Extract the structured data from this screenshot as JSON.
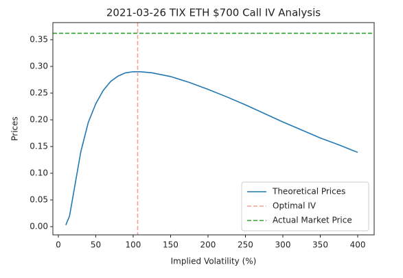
{
  "chart_data": {
    "type": "line",
    "title": "2021-03-26 TIX ETH $700 Call IV Analysis",
    "x_label": "Implied Volatility (%)",
    "y_label": "Prices",
    "x": [
      10,
      15,
      20,
      25,
      30,
      40,
      50,
      60,
      70,
      80,
      90,
      100,
      110,
      125,
      150,
      175,
      200,
      225,
      250,
      275,
      300,
      325,
      350,
      375,
      400
    ],
    "series": [
      {
        "name": "Theoretical Prices",
        "color": "#1f77b4",
        "values": [
          0.003,
          0.02,
          0.06,
          0.1,
          0.14,
          0.195,
          0.23,
          0.255,
          0.272,
          0.282,
          0.288,
          0.29,
          0.29,
          0.288,
          0.281,
          0.27,
          0.257,
          0.243,
          0.228,
          0.212,
          0.196,
          0.181,
          0.166,
          0.153,
          0.139
        ]
      }
    ],
    "reference_lines": [
      {
        "name": "Optimal IV",
        "color": "#f4a09a",
        "x": 106
      },
      {
        "name": "Actual Market Price",
        "color": "#2ca02c",
        "y": 0.362
      }
    ],
    "xlim": [
      -7.3,
      422
    ],
    "ylim": [
      -0.0154,
      0.382
    ],
    "xticks": [
      0,
      50,
      100,
      150,
      200,
      250,
      300,
      350,
      400
    ],
    "yticks": [
      {
        "value": 0,
        "label": "0.00"
      },
      0.05,
      {
        "value": 0.1,
        "label": "0.10"
      },
      0.15,
      {
        "value": 0.2,
        "label": "0.20"
      },
      0.25,
      {
        "value": 0.3,
        "label": "0.30"
      },
      0.35
    ],
    "legend": "lower right"
  }
}
